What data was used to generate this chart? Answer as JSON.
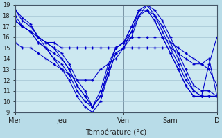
{
  "background_color": "#b8dce8",
  "plot_bg_color": "#cce8f0",
  "line_color": "#0000cc",
  "marker": "+",
  "ylim": [
    9,
    19
  ],
  "xlim": [
    0,
    4.33
  ],
  "xlabel": "Température (°c)",
  "yticks": [
    9,
    10,
    11,
    12,
    13,
    14,
    15,
    16,
    17,
    18,
    19
  ],
  "xtick_labels": [
    "Mer",
    "Jeu",
    "Ven",
    "Sam",
    "D"
  ],
  "xtick_pos": [
    0,
    1,
    2.33,
    3.33,
    4.33
  ],
  "grid_color": "#99bbcc",
  "series": [
    {
      "x": [
        0,
        0.16,
        0.33,
        0.5,
        0.66,
        0.83,
        1.0,
        1.16,
        1.33,
        1.5,
        1.66,
        1.83,
        2.0,
        2.16,
        2.33,
        2.5,
        2.66,
        2.83,
        3.0,
        3.16,
        3.33,
        3.5,
        3.66,
        3.83,
        4.0,
        4.16,
        4.33
      ],
      "y": [
        18.5,
        17.8,
        17.2,
        16.0,
        15.0,
        14.0,
        13.0,
        12.0,
        10.5,
        9.5,
        9.0,
        10.0,
        12.5,
        14.5,
        15.0,
        16.0,
        18.0,
        19.0,
        18.5,
        17.5,
        16.0,
        14.5,
        13.0,
        11.5,
        11.0,
        11.0,
        10.5
      ]
    },
    {
      "x": [
        0,
        0.16,
        0.33,
        0.5,
        0.66,
        0.83,
        1.0,
        1.16,
        1.33,
        1.5,
        1.66,
        1.83,
        2.0,
        2.16,
        2.33,
        2.5,
        2.66,
        2.83,
        3.0,
        3.16,
        3.33,
        3.5,
        3.66,
        3.83,
        4.0,
        4.16,
        4.33
      ],
      "y": [
        18.5,
        17.5,
        17.0,
        16.0,
        15.5,
        15.0,
        14.0,
        13.0,
        11.5,
        10.5,
        9.5,
        10.5,
        13.0,
        15.0,
        15.5,
        17.0,
        18.5,
        18.5,
        18.0,
        17.0,
        15.5,
        14.0,
        12.5,
        11.0,
        10.5,
        10.5,
        10.5
      ]
    },
    {
      "x": [
        0,
        0.16,
        0.33,
        0.5,
        0.66,
        0.83,
        1.0,
        1.16,
        1.33,
        1.5,
        1.66,
        1.83,
        2.0,
        2.16,
        2.33,
        2.5,
        2.66,
        2.83,
        3.0,
        3.16,
        3.33,
        3.5,
        3.66,
        3.83,
        4.0,
        4.16,
        4.33
      ],
      "y": [
        18.0,
        17.0,
        16.5,
        16.0,
        15.5,
        15.0,
        14.5,
        13.5,
        12.0,
        11.0,
        9.5,
        10.5,
        13.0,
        15.0,
        15.5,
        16.5,
        18.5,
        19.0,
        18.0,
        16.5,
        15.0,
        13.5,
        12.0,
        11.0,
        10.5,
        10.5,
        10.5
      ]
    },
    {
      "x": [
        0,
        0.16,
        0.33,
        0.5,
        0.66,
        0.83,
        1.0,
        1.16,
        1.33,
        1.5,
        1.66,
        1.83,
        2.0,
        2.16,
        2.33,
        2.5,
        2.66,
        2.83,
        3.0,
        3.16,
        3.33,
        3.5,
        3.66,
        3.83,
        4.0,
        4.16,
        4.33
      ],
      "y": [
        17.5,
        17.0,
        16.5,
        16.0,
        15.5,
        15.5,
        15.0,
        15.0,
        15.0,
        15.0,
        15.0,
        15.0,
        15.0,
        15.0,
        15.5,
        16.0,
        16.0,
        16.0,
        16.0,
        16.0,
        15.5,
        15.0,
        14.5,
        14.0,
        13.5,
        13.0,
        11.5
      ]
    },
    {
      "x": [
        0,
        0.16,
        0.33,
        0.5,
        0.66,
        0.83,
        1.0,
        1.16,
        1.33,
        1.5,
        1.66,
        1.83,
        2.0,
        2.16,
        2.33,
        2.5,
        2.66,
        2.83,
        3.0,
        3.16,
        3.33,
        3.5,
        3.66,
        3.83,
        4.0,
        4.16,
        4.33
      ],
      "y": [
        17.5,
        17.0,
        16.5,
        15.5,
        15.0,
        14.5,
        14.0,
        13.0,
        11.5,
        10.5,
        9.5,
        11.0,
        13.5,
        15.0,
        15.5,
        17.0,
        18.5,
        18.5,
        17.5,
        16.0,
        14.5,
        13.0,
        11.5,
        10.5,
        10.5,
        10.5,
        10.5
      ]
    },
    {
      "x": [
        0,
        0.16,
        0.33,
        0.5,
        0.66,
        0.83,
        1.0,
        1.16,
        1.33,
        1.5,
        1.66,
        1.83,
        2.0,
        2.16,
        2.33,
        2.5,
        2.66,
        2.83,
        3.0,
        3.16,
        3.33,
        3.5,
        3.66,
        3.83,
        4.0,
        4.16,
        4.33
      ],
      "y": [
        17.5,
        17.0,
        16.5,
        15.5,
        15.0,
        14.0,
        13.5,
        12.5,
        11.0,
        10.0,
        9.5,
        10.5,
        12.5,
        14.5,
        15.0,
        16.5,
        18.0,
        18.5,
        17.5,
        16.0,
        14.5,
        13.0,
        11.5,
        10.5,
        10.5,
        13.5,
        16.0
      ]
    },
    {
      "x": [
        0,
        0.16,
        0.33,
        0.5,
        0.66,
        0.83,
        1.0,
        1.16,
        1.33,
        1.5,
        1.66,
        1.83,
        2.0,
        2.16,
        2.33,
        2.5,
        2.66,
        2.83,
        3.0,
        3.16,
        3.33,
        3.5,
        3.66,
        3.83,
        4.0,
        4.16,
        4.33
      ],
      "y": [
        15.5,
        15.0,
        15.0,
        14.5,
        14.0,
        13.5,
        13.0,
        12.5,
        12.0,
        12.0,
        12.0,
        13.0,
        13.5,
        14.0,
        15.0,
        15.0,
        15.0,
        15.0,
        15.0,
        15.0,
        15.0,
        14.5,
        14.0,
        13.5,
        13.5,
        14.0,
        10.5
      ]
    }
  ]
}
